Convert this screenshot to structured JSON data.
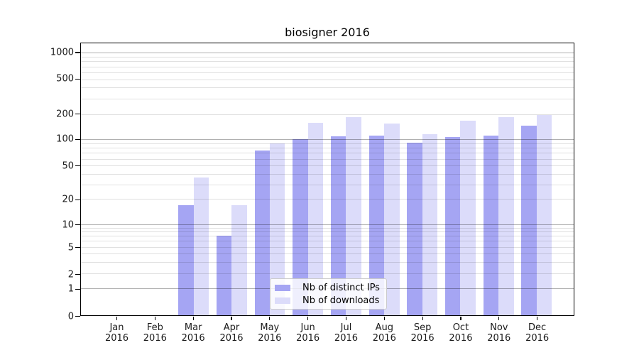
{
  "chart_data": {
    "type": "bar",
    "title": "biosigner 2016",
    "categories": [
      "Jan",
      "Feb",
      "Mar",
      "Apr",
      "May",
      "Jun",
      "Jul",
      "Aug",
      "Sep",
      "Oct",
      "Nov",
      "Dec"
    ],
    "x_tick_line2": "2016",
    "series": [
      {
        "name": "Nb of distinct IPs",
        "color": "#a5a5f3",
        "values": [
          0,
          0,
          17,
          7,
          75,
          100,
          109,
          110,
          92,
          106,
          111,
          145
        ]
      },
      {
        "name": "Nb of downloads",
        "color": "#dcdcfa",
        "values": [
          0,
          0,
          36,
          17,
          90,
          158,
          183,
          153,
          115,
          168,
          185,
          196
        ]
      }
    ],
    "xlabel": "",
    "ylabel": "",
    "yscale": "symlog",
    "y_ticks": [
      0,
      1,
      2,
      5,
      10,
      20,
      50,
      100,
      200,
      500,
      1000
    ],
    "ylim": [
      0,
      1300
    ],
    "grid": true,
    "legend_position": "lower center"
  }
}
